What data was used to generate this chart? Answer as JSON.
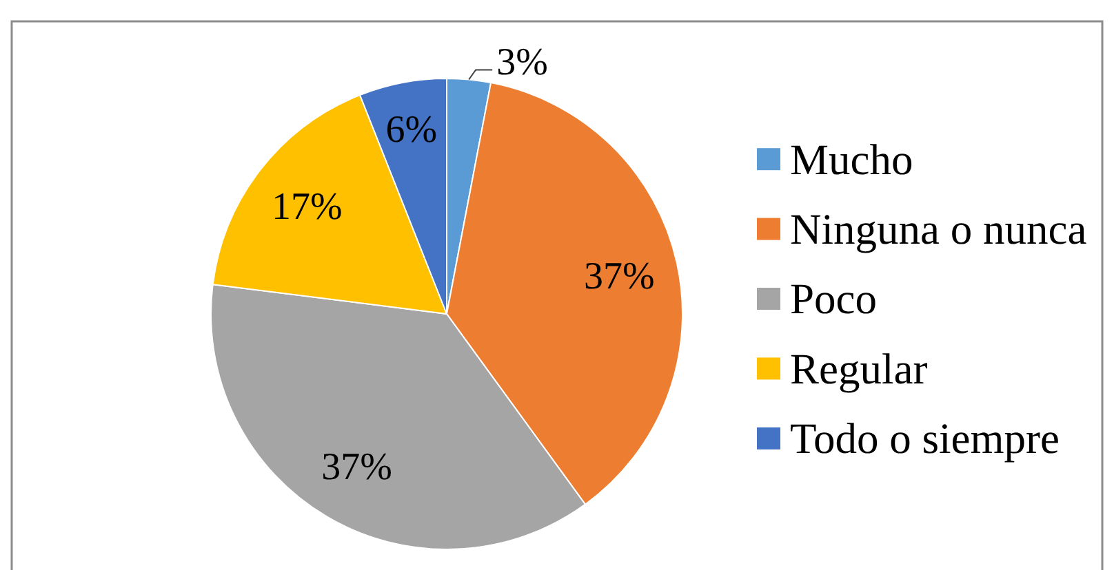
{
  "chart_data": {
    "type": "pie",
    "categories": [
      "Mucho",
      "Ninguna o nunca",
      "Poco",
      "Regular",
      "Todo o siempre"
    ],
    "values": [
      3,
      37,
      37,
      17,
      6
    ],
    "colors": [
      "#5b9bd5",
      "#ed7d31",
      "#a5a5a5",
      "#ffc000",
      "#4472c4"
    ],
    "value_labels": [
      "3%",
      "37%",
      "37%",
      "17%",
      "6%"
    ],
    "legend": "right"
  }
}
